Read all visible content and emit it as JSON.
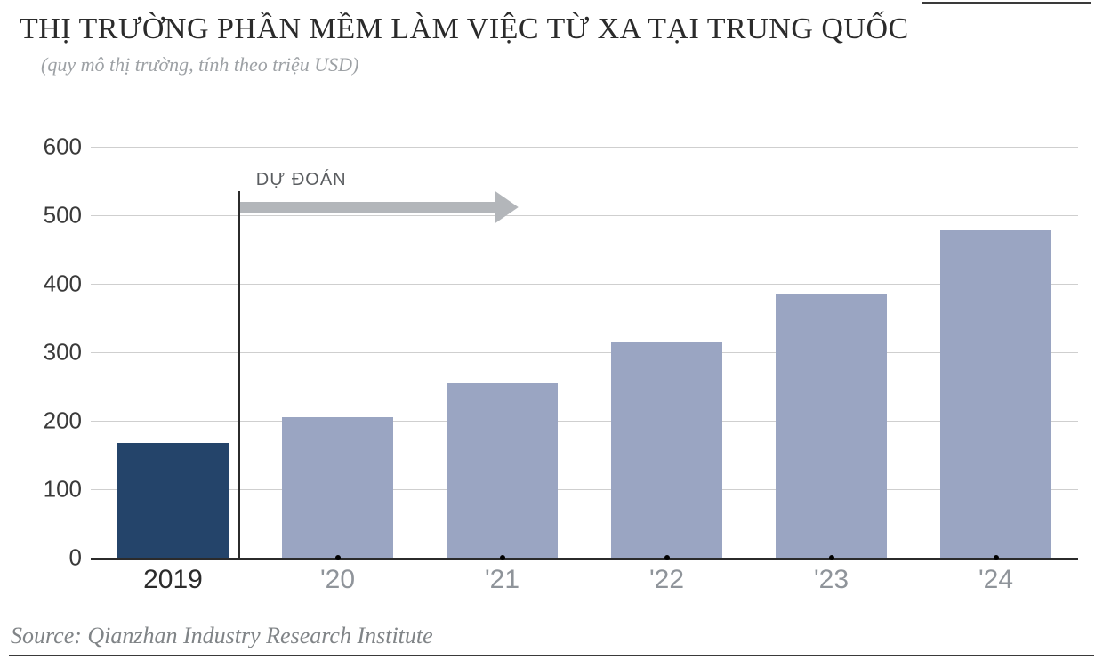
{
  "title": "THỊ TRƯỜNG PHẦN MỀM LÀM VIỆC TỪ XA TẠI TRUNG QUỐC",
  "subtitle": "(quy mô thị trường, tính theo triệu USD)",
  "source": "Source: Qianzhan Industry Research Institute",
  "chart": {
    "type": "bar",
    "ylim": [
      0,
      600
    ],
    "ytick_step": 100,
    "yticks": [
      0,
      100,
      200,
      300,
      400,
      500,
      600
    ],
    "categories": [
      "2019",
      "'20",
      "'21",
      "'22",
      "'23",
      "'24"
    ],
    "values": [
      168,
      205,
      255,
      315,
      385,
      478
    ],
    "bar_colors": [
      "#24446a",
      "#9aa5c2",
      "#9aa5c2",
      "#9aa5c2",
      "#9aa5c2",
      "#9aa5c2"
    ],
    "is_forecast": [
      false,
      true,
      true,
      true,
      true,
      true
    ],
    "forecast_label": "DỰ ĐOÁN",
    "forecast_divider_after_index": 0,
    "grid_color": "#cfcfcf",
    "axis_color": "#2b2b2b",
    "background_color": "#ffffff",
    "arrow_color": "#b3b6ba",
    "xlabel_color_actual": "#2b2b2b",
    "xlabel_color_forecast": "#8f949a",
    "bar_width_ratio": 0.68,
    "title_fontsize": 34,
    "subtitle_fontsize": 22,
    "ylabel_fontsize": 26,
    "xlabel_fontsize": 30,
    "source_fontsize": 26,
    "forecast_label_fontsize": 20
  }
}
